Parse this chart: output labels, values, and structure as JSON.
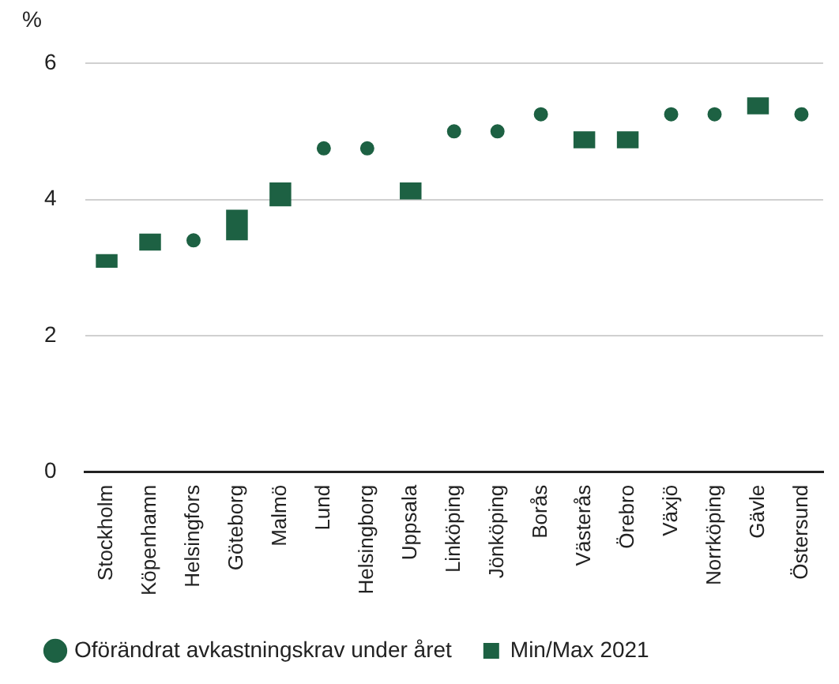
{
  "chart_data": {
    "type": "bar",
    "ylabel": "%",
    "categories": [
      "Stockholm",
      "Köpenhamn",
      "Helsingfors",
      "Göteborg",
      "Malmö",
      "Lund",
      "Helsingborg",
      "Uppsala",
      "Linköping",
      "Jönköping",
      "Borås",
      "Västerås",
      "Örebro",
      "Växjö",
      "Norrköping",
      "Gävle",
      "Östersund"
    ],
    "series": [
      {
        "name": "Oförändrat avkastningskrav under året",
        "type": "scatter",
        "color": "#1d6143",
        "x": [
          "Helsingfors",
          "Lund",
          "Helsingborg",
          "Linköping",
          "Jönköping",
          "Borås",
          "Växjö",
          "Norrköping",
          "Östersund"
        ],
        "values": [
          3.4,
          4.75,
          4.75,
          5.0,
          5.0,
          5.25,
          5.25,
          5.25,
          5.25
        ]
      },
      {
        "name": "Min/Max 2021",
        "color": "#1d6143",
        "base": [
          3.0,
          3.25,
          null,
          3.4,
          3.9,
          null,
          null,
          4.0,
          null,
          null,
          null,
          4.75,
          4.75,
          null,
          null,
          5.25,
          null
        ],
        "values": [
          0.2,
          0.25,
          null,
          0.45,
          0.35,
          null,
          null,
          0.25,
          null,
          null,
          null,
          0.25,
          0.25,
          null,
          null,
          0.25,
          null
        ]
      }
    ],
    "ylim": [
      0,
      6
    ],
    "yticks": [
      0,
      2,
      4,
      6
    ],
    "grid": "y",
    "legend": "bottom",
    "marker": "circle"
  }
}
